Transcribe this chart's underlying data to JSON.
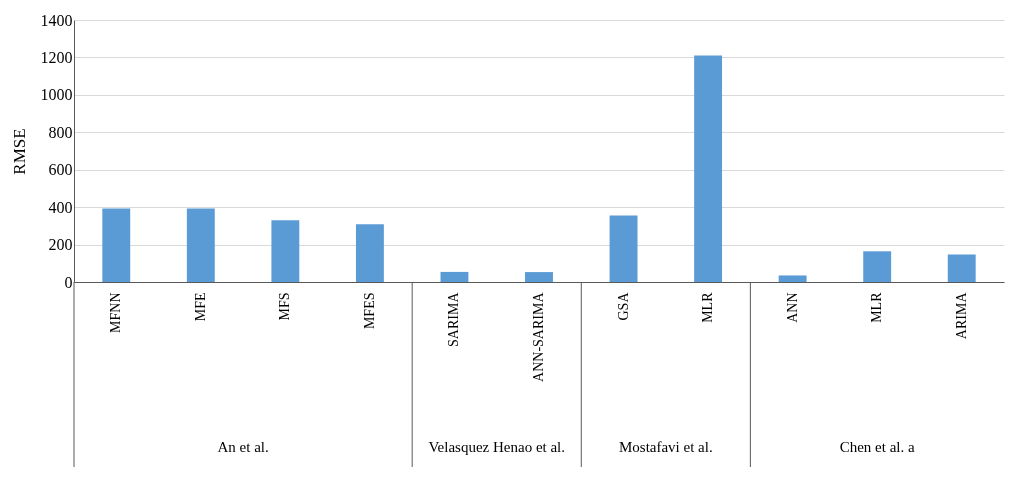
{
  "chart_data": {
    "type": "bar",
    "ylabel": "RMSE",
    "categories": [
      "MFNN",
      "MFE",
      "MFS",
      "MFES",
      "SARIMA",
      "ANN-SARIMA",
      "GSA",
      "MLR",
      "ANN",
      "MLR",
      "ARIMA"
    ],
    "values": [
      393,
      393,
      330,
      308,
      54,
      53,
      355,
      1210,
      35,
      164,
      147
    ],
    "color": "#5b9bd5",
    "ylim": [
      0,
      1400
    ],
    "yticks": [
      0,
      200,
      400,
      600,
      800,
      1000,
      1200,
      1400
    ],
    "grid": "y",
    "annotations": [
      "An et al.",
      "Velasquez Henao et al.",
      "Mostafavi et al.",
      "Chen et al. a"
    ]
  }
}
